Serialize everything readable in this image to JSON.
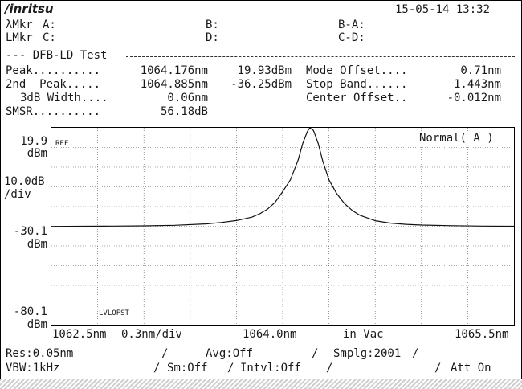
{
  "header": {
    "brand": "/inritsu",
    "datetime": "15-05-14 13:32"
  },
  "markers": {
    "lmkr_wave_label": "λMkr",
    "a_label": "A:",
    "b_label": "B:",
    "ba_label": "B-A:",
    "lmkr_level_label": "LMkr",
    "c_label": "C:",
    "d_label": "D:",
    "cd_label": "C-D:"
  },
  "test": {
    "title": "--- DFB-LD Test",
    "peak_label": "Peak..........",
    "peak_wl": "1064.176nm",
    "peak_lvl": "19.93dBm",
    "mode_offset_label": "Mode Offset....",
    "mode_offset_val": "0.71nm",
    "second_peak_label": "2nd  Peak.....",
    "second_peak_wl": "1064.885nm",
    "second_peak_lvl": "-36.25dBm",
    "stop_band_label": "Stop Band......",
    "stop_band_val": "1.443nm",
    "width_label": "3dB Width....",
    "width_val": "0.06nm",
    "center_offset_label": "Center Offset..",
    "center_offset_val": "-0.012nm",
    "smsr_label": "SMSR..........",
    "smsr_val": "56.18dB"
  },
  "axis": {
    "top_level": "19.9",
    "top_unit": "dBm",
    "scale": "10.0dB",
    "scale_unit": "/div",
    "mid_level": "-30.1",
    "mid_unit": "dBm",
    "bottom_level": "-80.1",
    "bottom_unit": "dBm",
    "ref_label": "REF",
    "lvlofst_label": "LVLOFST",
    "mode_label": "Normal( A )",
    "x_start": "1062.5nm",
    "x_span": "0.3nm/div",
    "x_center": "1064.0nm",
    "x_medium": "in Vac",
    "x_end": "1065.5nm"
  },
  "status": {
    "res": "Res:0.05nm",
    "slash1": "/",
    "avg": "Avg:Off",
    "slash2": "/",
    "smplg": "Smplg:2001",
    "slash3": "/",
    "vbw": "VBW:1kHz",
    "slash4": "/",
    "sm": "Sm:Off",
    "slash5": "/",
    "intvl": "Intvl:Off",
    "slash6": "/",
    "slash7": "/",
    "att": "Att On"
  },
  "chart_data": {
    "type": "line",
    "xlim": [
      1062.5,
      1065.5
    ],
    "ylim": [
      -80.1,
      19.9
    ],
    "xlabel": "",
    "ylabel": "",
    "grid": true,
    "series": [
      {
        "x": [
          1062.5,
          1062.7,
          1062.9,
          1063.1,
          1063.3,
          1063.5,
          1063.6,
          1063.7,
          1063.8,
          1063.85,
          1063.9,
          1063.95,
          1064.0,
          1064.05,
          1064.1,
          1064.13,
          1064.16,
          1064.176,
          1064.2,
          1064.23,
          1064.26,
          1064.3,
          1064.35,
          1064.4,
          1064.45,
          1064.5,
          1064.6,
          1064.7,
          1064.8,
          1064.9,
          1065.1,
          1065.3,
          1065.5
        ],
        "y": [
          -30.2,
          -30.1,
          -30.0,
          -29.9,
          -29.6,
          -28.9,
          -28.2,
          -27.2,
          -25.5,
          -23.8,
          -21.5,
          -18.0,
          -12.5,
          -6.5,
          3.5,
          12.0,
          18.0,
          19.9,
          18.5,
          12.0,
          3.0,
          -6.5,
          -13.5,
          -18.5,
          -22.0,
          -24.5,
          -27.3,
          -28.5,
          -29.1,
          -29.5,
          -29.8,
          -30.0,
          -30.1
        ]
      }
    ]
  }
}
